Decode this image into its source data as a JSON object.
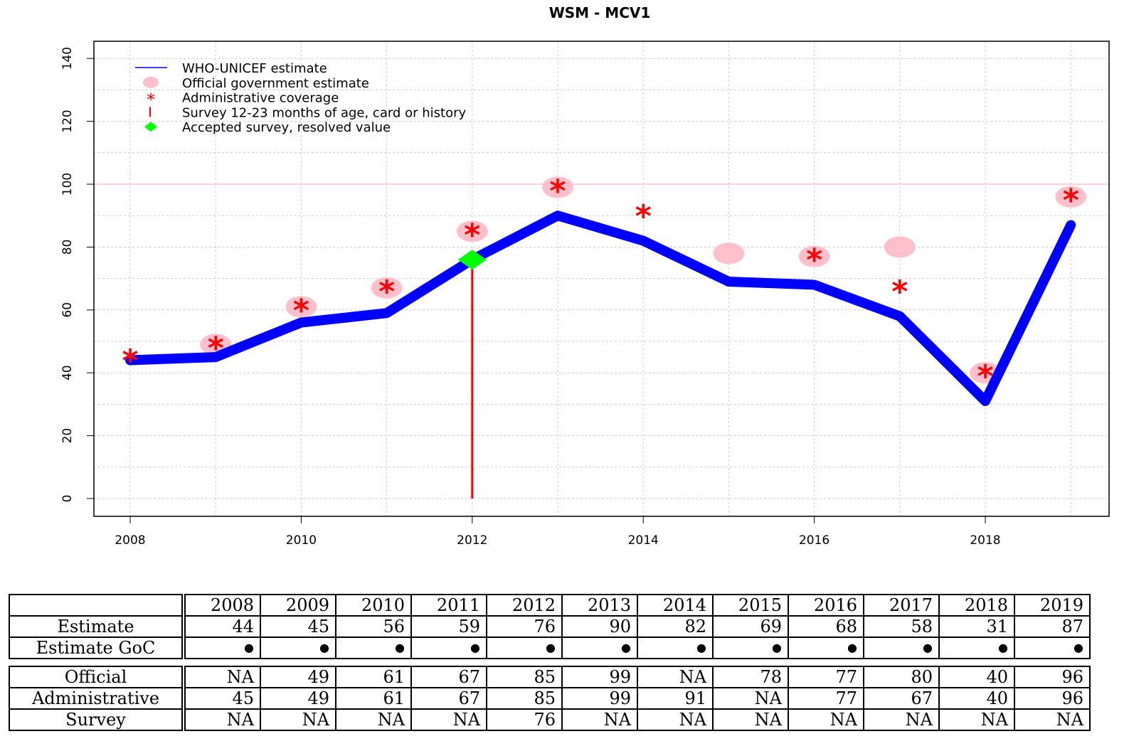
{
  "chart_data": {
    "type": "line",
    "title": "WSM  -  MCV1",
    "xlabel": "",
    "ylabel": "",
    "x": [
      2008,
      2009,
      2010,
      2011,
      2012,
      2013,
      2014,
      2015,
      2016,
      2017,
      2018,
      2019
    ],
    "xticks": [
      "2008",
      "2010",
      "2012",
      "2014",
      "2016",
      "2018"
    ],
    "yticks": [
      "0",
      "20",
      "40",
      "60",
      "80",
      "100",
      "120",
      "140"
    ],
    "ylim": [
      -5.5,
      145
    ],
    "grid": true,
    "reference_line": 100,
    "legend_placement": "top-left",
    "series": [
      {
        "name": "WHO-UNICEF estimate",
        "values": [
          44,
          45,
          56,
          59,
          76,
          90,
          82,
          69,
          68,
          58,
          31,
          87
        ],
        "color": "#0000ff"
      },
      {
        "name": "Official government estimate",
        "values": [
          null,
          49,
          61,
          67,
          85,
          99,
          null,
          78,
          77,
          80,
          40,
          96
        ],
        "color": "#ffc0cb"
      },
      {
        "name": "Administrative coverage",
        "values": [
          45,
          49,
          61,
          67,
          85,
          99,
          91,
          null,
          77,
          67,
          40,
          96
        ],
        "color": "#ff0000"
      },
      {
        "name": "Survey 12-23 months of age, card or history",
        "values": [
          null,
          null,
          null,
          null,
          76,
          null,
          null,
          null,
          null,
          null,
          null,
          null
        ],
        "color": "#ff0000"
      },
      {
        "name": "Accepted survey, resolved value",
        "values": [
          null,
          null,
          null,
          null,
          76,
          null,
          null,
          null,
          null,
          null,
          null,
          null
        ],
        "color": "#00ff00"
      }
    ]
  },
  "table": {
    "years": [
      "2008",
      "2009",
      "2010",
      "2011",
      "2012",
      "2013",
      "2014",
      "2015",
      "2016",
      "2017",
      "2018",
      "2019"
    ],
    "rows_top": [
      {
        "label": "Estimate",
        "cells": [
          "44",
          "45",
          "56",
          "59",
          "76",
          "90",
          "82",
          "69",
          "68",
          "58",
          "31",
          "87"
        ]
      },
      {
        "label": "Estimate GoC",
        "cells": [
          "●",
          "●",
          "●",
          "●",
          "●",
          "●",
          "●",
          "●",
          "●",
          "●",
          "●",
          "●"
        ]
      }
    ],
    "rows_bottom": [
      {
        "label": "Official",
        "cells": [
          "NA",
          "49",
          "61",
          "67",
          "85",
          "99",
          "NA",
          "78",
          "77",
          "80",
          "40",
          "96"
        ]
      },
      {
        "label": "Administrative",
        "cells": [
          "45",
          "49",
          "61",
          "67",
          "85",
          "99",
          "91",
          "NA",
          "77",
          "67",
          "40",
          "96"
        ]
      },
      {
        "label": "Survey",
        "cells": [
          "NA",
          "NA",
          "NA",
          "NA",
          "76",
          "NA",
          "NA",
          "NA",
          "NA",
          "NA",
          "NA",
          "NA"
        ]
      }
    ]
  }
}
